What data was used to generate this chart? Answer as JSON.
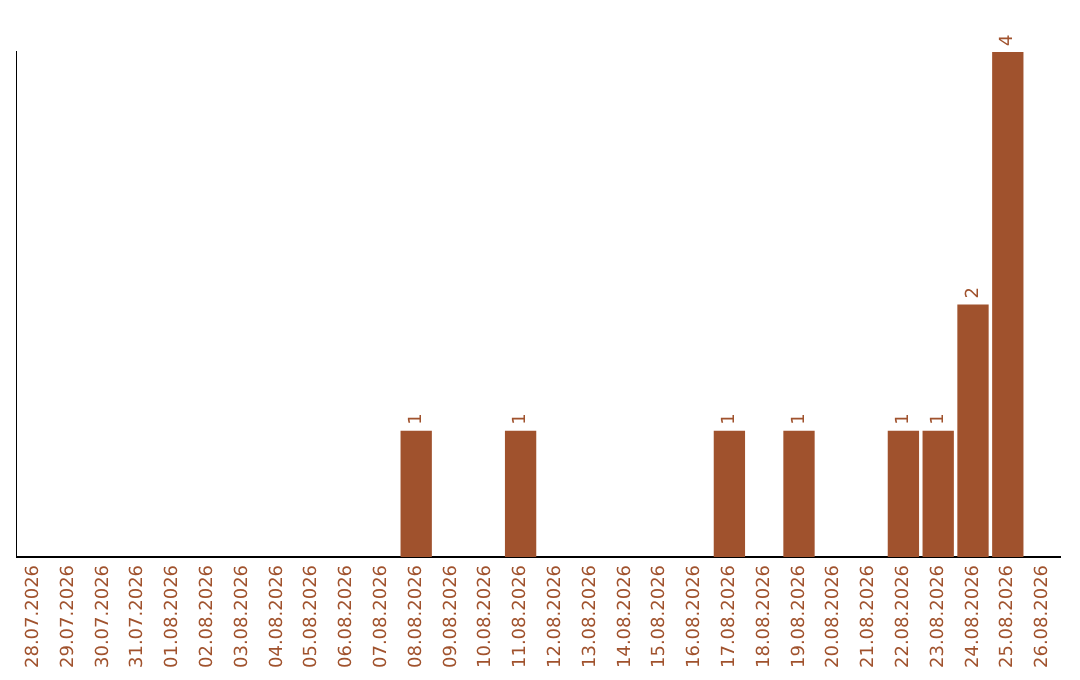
{
  "chart_data": {
    "type": "bar",
    "categories": [
      "28.07.2026",
      "29.07.2026",
      "30.07.2026",
      "31.07.2026",
      "01.08.2026",
      "02.08.2026",
      "03.08.2026",
      "04.08.2026",
      "05.08.2026",
      "06.08.2026",
      "07.08.2026",
      "08.08.2026",
      "09.08.2026",
      "10.08.2026",
      "11.08.2026",
      "12.08.2026",
      "13.08.2026",
      "14.08.2026",
      "15.08.2026",
      "16.08.2026",
      "17.08.2026",
      "18.08.2026",
      "19.08.2026",
      "20.08.2026",
      "21.08.2026",
      "22.08.2026",
      "23.08.2026",
      "24.08.2026",
      "25.08.2026",
      "26.08.2026"
    ],
    "values": [
      0,
      0,
      0,
      0,
      0,
      0,
      0,
      0,
      0,
      0,
      0,
      1,
      0,
      0,
      1,
      0,
      0,
      0,
      0,
      0,
      1,
      0,
      1,
      0,
      0,
      1,
      1,
      2,
      4,
      0
    ],
    "value_labels": [
      null,
      null,
      null,
      null,
      null,
      null,
      null,
      null,
      null,
      null,
      null,
      "1",
      null,
      null,
      "1",
      null,
      null,
      null,
      null,
      null,
      "1",
      null,
      "1",
      null,
      null,
      "1",
      "1",
      "2",
      "4",
      null
    ],
    "color": "#a0522d",
    "grid": false,
    "legend": false
  }
}
